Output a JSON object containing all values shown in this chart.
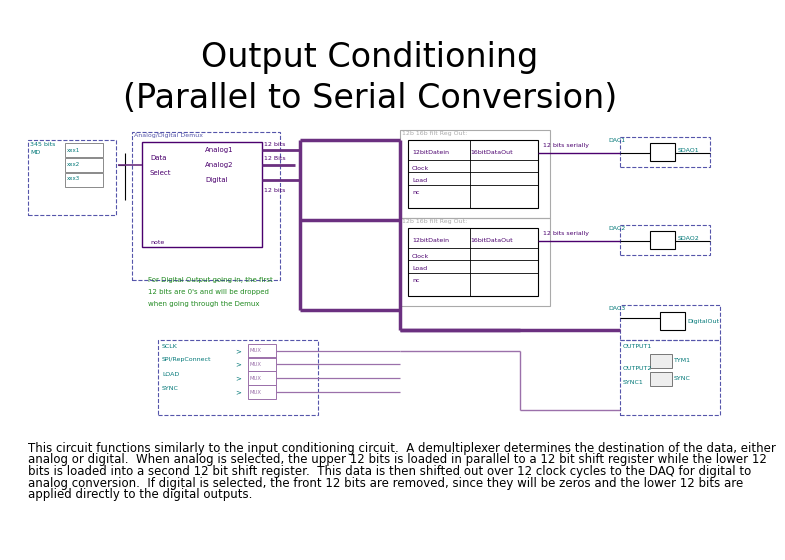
{
  "title_line1": "Output Conditioning",
  "title_line2": "(Parallel to Serial Conversion)",
  "title_fontsize": 24,
  "title_fontweight": "normal",
  "body_text_lines": [
    "This circuit functions similarly to the input conditioning circuit.  A demultiplexer determines the destination of the data, either",
    "analog or digital.  When analog is selected, the upper 12 bits is loaded in parallel to a 12 bit shift register while the lower 12",
    "bits is loaded into a second 12 bit shift register.  This data is then shifted out over 12 clock cycles to the DAQ for digital to",
    "analog conversion.  If digital is selected, the front 12 bits are removed, since they will be zeros and the lower 12 bits are",
    "applied directly to the digital outputs."
  ],
  "body_fontsize": 8.5,
  "background_color": "#ffffff",
  "title_color": "#000000",
  "body_color": "#000000",
  "purple_dark": "#4B006E",
  "purple_med": "#6B3080",
  "purple_light": "#9B70AA",
  "blue_dashed": "#5555AA",
  "teal": "#007777",
  "green": "#228B22",
  "gray": "#777777",
  "light_gray": "#AAAAAA",
  "black": "#000000"
}
